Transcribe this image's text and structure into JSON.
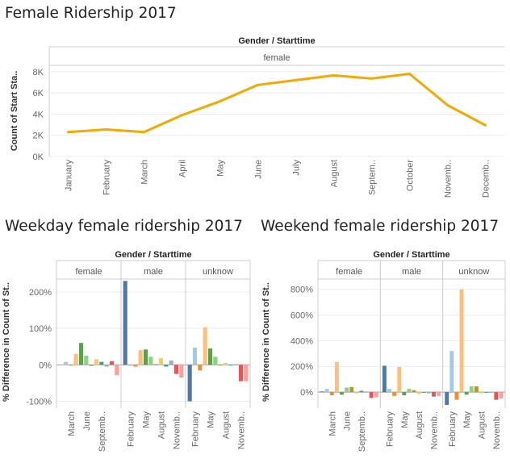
{
  "chart_data": [
    {
      "type": "line",
      "title": "Female Ridership 2017",
      "header": "Gender / Starttime",
      "panels": [
        "female"
      ],
      "ylabel": "Count of Start Sta..",
      "yticks": [
        "8K",
        "6K",
        "4K",
        "2K",
        "0K"
      ],
      "ytick_values": [
        8000,
        6000,
        4000,
        2000,
        0
      ],
      "ylim": [
        0,
        8600
      ],
      "categories": [
        "January",
        "February",
        "March",
        "April",
        "May",
        "June",
        "July",
        "August",
        "Septem..",
        "October",
        "Novemb..",
        "Decemb.."
      ],
      "series": [
        {
          "values": [
            2300,
            2550,
            2300,
            3900,
            5200,
            6750,
            7200,
            7650,
            7350,
            7800,
            4850,
            2950
          ]
        }
      ],
      "colors": {
        "line": "#f5a800"
      }
    },
    {
      "type": "bar",
      "title": "Weekday female ridership 2017",
      "header": "Gender / Starttime",
      "panels": [
        "female",
        "male",
        "unknow"
      ],
      "ylabel": "% Difference in Count of St..",
      "yticks": [
        "200%",
        "100%",
        "0%",
        "-100%"
      ],
      "ytick_values": [
        200,
        100,
        0,
        -100
      ],
      "ylim": [
        -110,
        235
      ],
      "month_ticks": [
        [
          "March",
          "June",
          "Septemb.."
        ],
        [
          "February",
          "May",
          "August",
          "Novemb.."
        ],
        [
          "February",
          "May",
          "August",
          "Novemb.."
        ]
      ],
      "month_tick_index": [
        [
          2,
          5,
          8
        ],
        [
          1,
          4,
          7,
          10
        ],
        [
          1,
          4,
          7,
          10
        ]
      ],
      "month_colors": [
        "#4e79a7",
        "#a0cbe8",
        "#f28e2b",
        "#ffbe7d",
        "#59a14f",
        "#8cd17d",
        "#b6992d",
        "#f1ce63",
        "#499894",
        "#86bcb6",
        "#e15759",
        "#ff9d9a"
      ],
      "series": [
        {
          "name": "female",
          "start_month": 1,
          "values": [
            8,
            -2,
            30,
            60,
            25,
            -3,
            15,
            8,
            -5,
            10,
            -28,
            -35
          ]
        },
        {
          "name": "male",
          "start_month": 0,
          "values": [
            230,
            -3,
            -5,
            40,
            42,
            22,
            2,
            18,
            -5,
            12,
            -25,
            -35
          ]
        },
        {
          "name": "unknow",
          "start_month": 0,
          "values": [
            -100,
            47,
            -15,
            103,
            45,
            22,
            -2,
            5,
            -2,
            2,
            -45,
            -45
          ]
        }
      ]
    },
    {
      "type": "bar",
      "title": "Weekend female ridership 2017",
      "header": "Gender / Starttime",
      "panels": [
        "female",
        "male",
        "unknow"
      ],
      "ylabel": "% Difference in Count of St..",
      "yticks": [
        "800%",
        "600%",
        "400%",
        "200%",
        "0%"
      ],
      "ytick_values": [
        800,
        600,
        400,
        200,
        0
      ],
      "ylim": [
        -100,
        880
      ],
      "month_ticks": [
        [
          "March",
          "June",
          "Septemb.."
        ],
        [
          "February",
          "May",
          "August",
          "Novemb.."
        ],
        [
          "February",
          "May",
          "August",
          "Novemb.."
        ]
      ],
      "month_tick_index": [
        [
          2,
          5,
          8
        ],
        [
          1,
          4,
          7,
          10
        ],
        [
          1,
          4,
          7,
          10
        ]
      ],
      "month_colors": [
        "#4e79a7",
        "#a0cbe8",
        "#f28e2b",
        "#ffbe7d",
        "#59a14f",
        "#8cd17d",
        "#b6992d",
        "#f1ce63",
        "#499894",
        "#86bcb6",
        "#e15759",
        "#ff9d9a"
      ],
      "series": [
        {
          "name": "female",
          "start_month": 0,
          "values": [
            5,
            25,
            -25,
            235,
            -20,
            35,
            40,
            -10,
            10,
            5,
            -45,
            -40
          ]
        },
        {
          "name": "male",
          "start_month": 0,
          "values": [
            205,
            25,
            -30,
            195,
            -25,
            25,
            15,
            -15,
            -5,
            -10,
            -35,
            -30
          ]
        },
        {
          "name": "unknow",
          "start_month": 0,
          "values": [
            -100,
            320,
            -60,
            800,
            -20,
            45,
            45,
            -10,
            -5,
            -5,
            -60,
            -50
          ]
        }
      ]
    }
  ]
}
